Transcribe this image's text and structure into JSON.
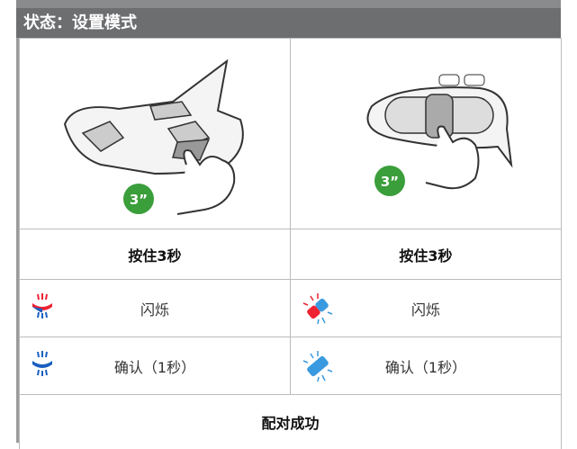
{
  "header": {
    "title": "状态：设置模式"
  },
  "images": [
    {
      "badge": "3”"
    },
    {
      "badge": "3”"
    }
  ],
  "table": {
    "rows": [
      [
        "按住3秒",
        "按住3秒"
      ],
      [
        "闪烁",
        "闪烁"
      ],
      [
        "确认（1秒）",
        "确认（1秒）"
      ]
    ]
  },
  "result": "配对成功"
}
